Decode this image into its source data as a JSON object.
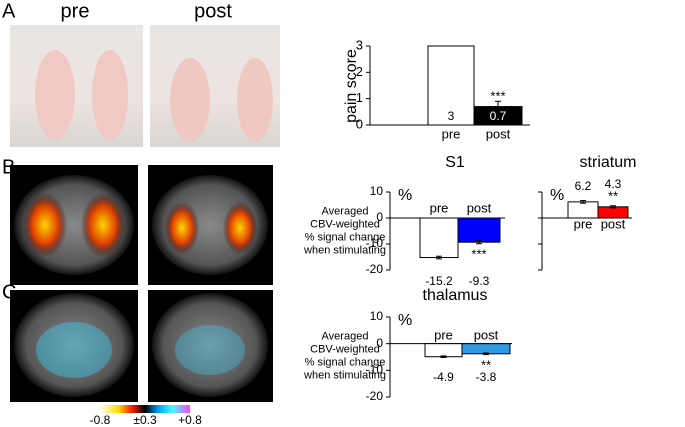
{
  "panels": [
    "A",
    "B",
    "C"
  ],
  "photo_labels": [
    "pre",
    "post"
  ],
  "colorbar": {
    "labels": [
      "-0.8",
      "±0.3",
      "+0.8"
    ]
  },
  "chart_data": [
    {
      "type": "bar",
      "ylabel": "pain score",
      "categories": [
        "pre",
        "post"
      ],
      "values": [
        3,
        0.7
      ],
      "errors": [
        null,
        0.2
      ],
      "significance": [
        null,
        "***"
      ],
      "colors": [
        "#ffffff",
        "#000000"
      ],
      "ylim": [
        0,
        3
      ],
      "yticks": [
        0,
        1,
        2,
        3
      ]
    },
    {
      "type": "bar",
      "title": "S1",
      "unit": "%",
      "ylabel_lines": [
        "Averaged",
        "CBV-weighted",
        "% signal change",
        "when stimulating"
      ],
      "categories": [
        "pre",
        "post"
      ],
      "values": [
        -15.2,
        -9.3
      ],
      "errors": [
        0.5,
        0.6
      ],
      "significance": [
        null,
        "***"
      ],
      "colors": [
        "#ffffff",
        "#0000ff"
      ],
      "ylim": [
        -20,
        10
      ],
      "yticks": [
        10,
        0,
        -10,
        -20
      ]
    },
    {
      "type": "bar",
      "title": "striatum",
      "unit": "%",
      "tick_labels": false,
      "categories": [
        "pre",
        "post"
      ],
      "values": [
        6.2,
        4.3
      ],
      "errors": [
        0.5,
        0.4
      ],
      "significance": [
        null,
        "**"
      ],
      "colors": [
        "#ffffff",
        "#ff0000"
      ],
      "ylim": [
        -20,
        10
      ],
      "yticks": [
        10,
        0,
        -10,
        -20
      ]
    },
    {
      "type": "bar",
      "title": "thalamus",
      "unit": "%",
      "ylabel_lines": [
        "Averaged",
        "CBV-weighted",
        "% signal change",
        "when stimulating"
      ],
      "categories": [
        "pre",
        "post"
      ],
      "values": [
        -4.9,
        -3.8
      ],
      "errors": [
        0.3,
        0.3
      ],
      "significance": [
        null,
        "**"
      ],
      "colors": [
        "#ffffff",
        "#3399e0"
      ],
      "ylim": [
        -20,
        10
      ],
      "yticks": [
        10,
        0,
        -10,
        -20
      ]
    }
  ]
}
